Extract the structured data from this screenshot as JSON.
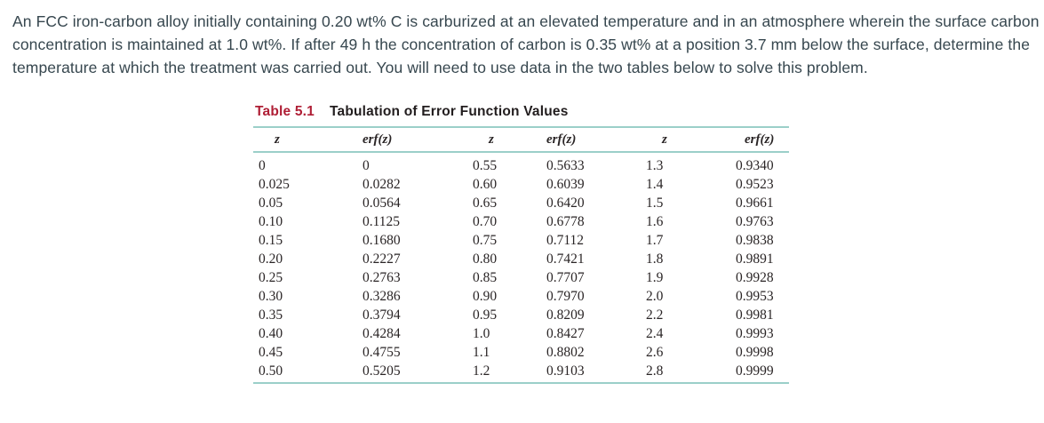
{
  "problem": {
    "text": "An FCC iron-carbon alloy initially containing 0.20 wt% C is carburized at an elevated temperature and in an atmosphere wherein the surface carbon concentration is maintained at 1.0 wt%. If after 49 h the concentration of carbon is 0.35 wt% at a position 3.7 mm below the surface, determine the temperature at which the treatment was carried out. You will need to use data in the two tables below to solve this problem."
  },
  "table": {
    "label": "Table 5.1",
    "title": "Tabulation of Error Function Values",
    "columns": [
      "z",
      "erf(z)",
      "z",
      "erf(z)",
      "z",
      "erf(z)"
    ],
    "rows": [
      [
        "0",
        "0",
        "0.55",
        "0.5633",
        "1.3",
        "0.9340"
      ],
      [
        "0.025",
        "0.0282",
        "0.60",
        "0.6039",
        "1.4",
        "0.9523"
      ],
      [
        "0.05",
        "0.0564",
        "0.65",
        "0.6420",
        "1.5",
        "0.9661"
      ],
      [
        "0.10",
        "0.1125",
        "0.70",
        "0.6778",
        "1.6",
        "0.9763"
      ],
      [
        "0.15",
        "0.1680",
        "0.75",
        "0.7112",
        "1.7",
        "0.9838"
      ],
      [
        "0.20",
        "0.2227",
        "0.80",
        "0.7421",
        "1.8",
        "0.9891"
      ],
      [
        "0.25",
        "0.2763",
        "0.85",
        "0.7707",
        "1.9",
        "0.9928"
      ],
      [
        "0.30",
        "0.3286",
        "0.90",
        "0.7970",
        "2.0",
        "0.9953"
      ],
      [
        "0.35",
        "0.3794",
        "0.95",
        "0.8209",
        "2.2",
        "0.9981"
      ],
      [
        "0.40",
        "0.4284",
        "1.0",
        "0.8427",
        "2.4",
        "0.9993"
      ],
      [
        "0.45",
        "0.4755",
        "1.1",
        "0.8802",
        "2.6",
        "0.9998"
      ],
      [
        "0.50",
        "0.5205",
        "1.2",
        "0.9103",
        "2.8",
        "0.9999"
      ]
    ]
  },
  "colors": {
    "accent_red": "#AF1E35",
    "rule_teal": "#9BCFC9",
    "body_text": "#37474F",
    "table_text": "#2A2526"
  }
}
